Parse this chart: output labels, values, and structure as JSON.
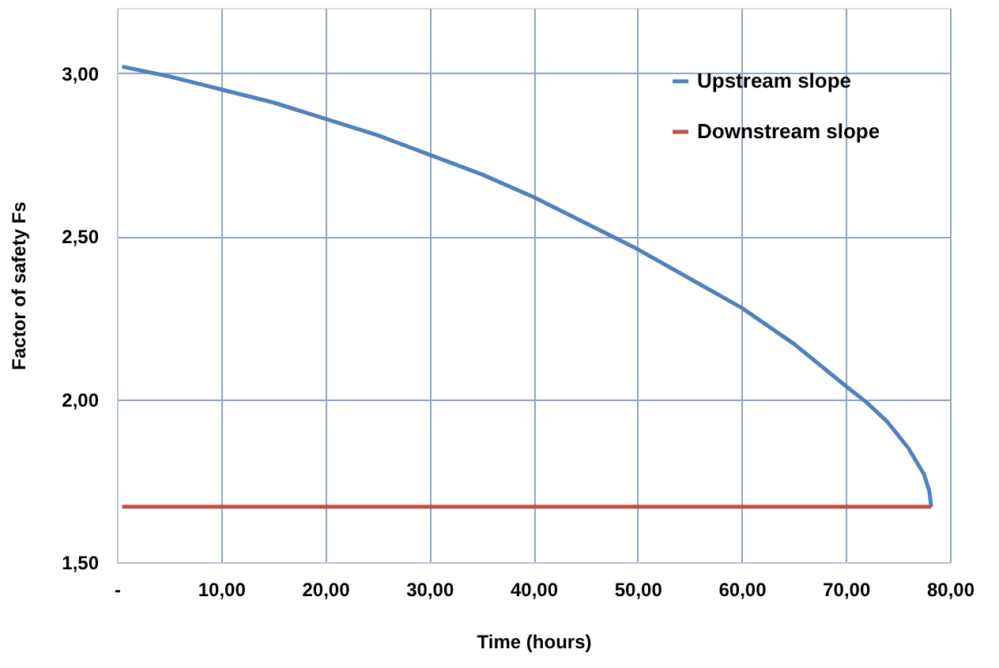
{
  "chart_data": {
    "type": "line",
    "xlabel": "Time (hours)",
    "ylabel": "Factor of safety    Fs",
    "xlim": [
      0,
      80
    ],
    "ylim": [
      1.5,
      3.2
    ],
    "xticks": [
      {
        "value": 0,
        "label": "-"
      },
      {
        "value": 10,
        "label": "10,00"
      },
      {
        "value": 20,
        "label": "20,00"
      },
      {
        "value": 30,
        "label": "30,00"
      },
      {
        "value": 40,
        "label": "40,00"
      },
      {
        "value": 50,
        "label": "50,00"
      },
      {
        "value": 60,
        "label": "60,00"
      },
      {
        "value": 70,
        "label": "70,00"
      },
      {
        "value": 80,
        "label": "80,00"
      }
    ],
    "yticks": [
      {
        "value": 1.5,
        "label": "1,50"
      },
      {
        "value": 2.0,
        "label": "2,00"
      },
      {
        "value": 2.5,
        "label": "2,50"
      },
      {
        "value": 3.0,
        "label": "3,00"
      }
    ],
    "grid": true,
    "legend": "top right",
    "marker": "none",
    "line_style": "solid",
    "series": [
      {
        "name": "Upstream  slope",
        "color": "#4f81bd",
        "x": [
          0.5,
          5,
          10,
          15,
          20,
          25,
          30,
          35,
          40,
          45,
          50,
          55,
          60,
          65,
          70,
          72,
          74,
          76,
          77.5,
          78,
          78.2
        ],
        "values": [
          3.02,
          2.99,
          2.95,
          2.91,
          2.86,
          2.81,
          2.75,
          2.69,
          2.62,
          2.54,
          2.46,
          2.37,
          2.28,
          2.17,
          2.04,
          1.99,
          1.93,
          1.85,
          1.77,
          1.72,
          1.67
        ]
      },
      {
        "name": "Downstream slope",
        "color": "#c0504d",
        "x": [
          0.5,
          78.2
        ],
        "values": [
          1.67,
          1.67
        ]
      }
    ]
  }
}
